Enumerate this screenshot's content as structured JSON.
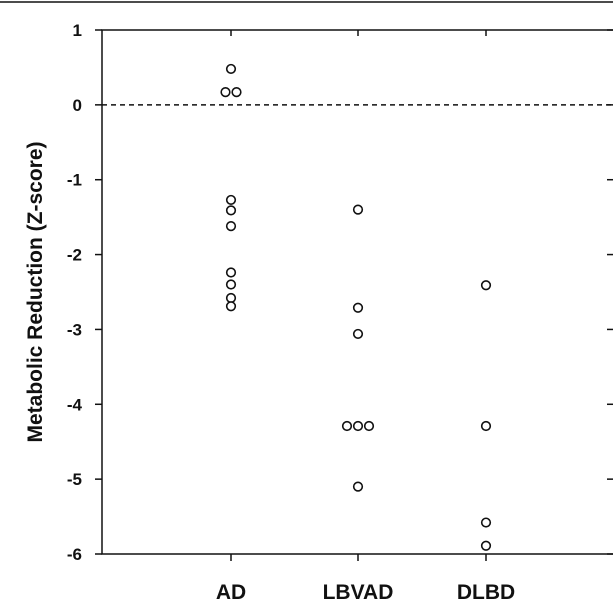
{
  "chart_data": {
    "type": "scatter",
    "ylabel": "Metabolic Reduction (Z-score)",
    "ylim": [
      -6,
      1
    ],
    "yticks": [
      1,
      0,
      -1,
      -2,
      -3,
      -4,
      -5,
      -6
    ],
    "ytick_labels": [
      "1",
      "0",
      "-1",
      "-2",
      "-3",
      "-4",
      "-5",
      "-6"
    ],
    "categories": [
      "AD",
      "LBVAD",
      "DLBD"
    ],
    "reference_line": {
      "y": 0,
      "style": "dashed"
    },
    "grid": false,
    "legend": "none",
    "marker": "open-circle",
    "series": [
      {
        "category": "AD",
        "points": [
          {
            "x_offset": 0,
            "y": 0.48
          },
          {
            "x_offset": -0.5,
            "y": 0.17
          },
          {
            "x_offset": 0.5,
            "y": 0.17
          },
          {
            "x_offset": 0,
            "y": -1.27
          },
          {
            "x_offset": 0,
            "y": -1.41
          },
          {
            "x_offset": 0,
            "y": -1.62
          },
          {
            "x_offset": 0,
            "y": -2.24
          },
          {
            "x_offset": 0,
            "y": -2.4
          },
          {
            "x_offset": 0,
            "y": -2.58
          },
          {
            "x_offset": 0,
            "y": -2.69
          }
        ]
      },
      {
        "category": "LBVAD",
        "points": [
          {
            "x_offset": 0,
            "y": -1.4
          },
          {
            "x_offset": 0,
            "y": -2.71
          },
          {
            "x_offset": 0,
            "y": -3.06
          },
          {
            "x_offset": -1,
            "y": -4.29
          },
          {
            "x_offset": 0,
            "y": -4.29
          },
          {
            "x_offset": 1,
            "y": -4.29
          },
          {
            "x_offset": 0,
            "y": -5.1
          }
        ]
      },
      {
        "category": "DLBD",
        "points": [
          {
            "x_offset": 0,
            "y": -2.41
          },
          {
            "x_offset": 0,
            "y": -4.29
          },
          {
            "x_offset": 0,
            "y": -5.58
          },
          {
            "x_offset": 0,
            "y": -5.89
          }
        ]
      }
    ]
  }
}
